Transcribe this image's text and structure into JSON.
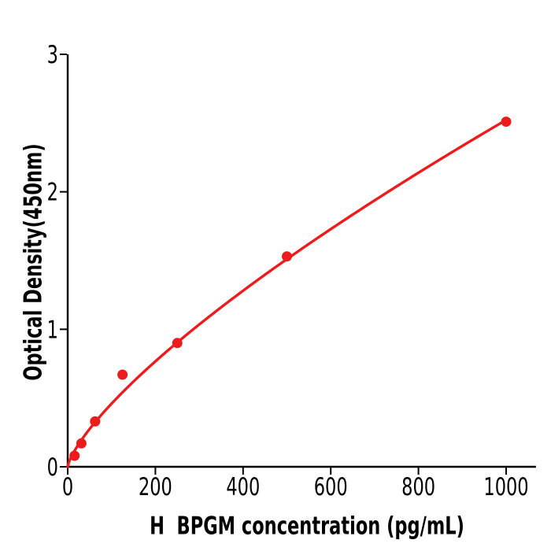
{
  "chart": {
    "x_axis_label": "H  BPGM concentration (pg/mL)",
    "y_axis_label": "Optical Density(450nm)"
  },
  "chart_data": {
    "type": "scatter",
    "title": "",
    "xlabel": "H  BPGM concentration (pg/mL)",
    "ylabel": "Optical Density(450nm)",
    "x": [
      15.6,
      31.2,
      62.5,
      125,
      250,
      500,
      1000
    ],
    "y": [
      0.08,
      0.17,
      0.33,
      0.67,
      0.9,
      1.53,
      2.51
    ],
    "x_ticks": [
      0,
      200,
      400,
      600,
      800,
      1000
    ],
    "y_ticks": [
      0,
      1,
      2,
      3
    ],
    "xlim": [
      0,
      1068
    ],
    "ylim": [
      0,
      3
    ],
    "grid": false,
    "legend": "none",
    "marker_color": "#ed1c1c",
    "line_color": "#ed1c1c",
    "axis_color": "#000000",
    "background_color": "#ffffff",
    "trend_fit": {
      "type": "power",
      "a": 0.0152,
      "b": 0.74,
      "x_start": 0,
      "x_end": 1000
    }
  }
}
